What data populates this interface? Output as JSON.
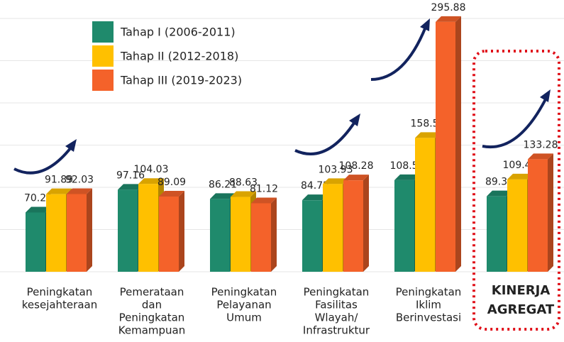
{
  "chart_data": {
    "type": "bar3d",
    "categories": [
      [
        "Peningkatan",
        "kesejahteraan"
      ],
      [
        "Pemerataan",
        "dan",
        "Peningkatan",
        "Kemampuan"
      ],
      [
        "Peningkatan",
        "Pelayanan",
        "Umum"
      ],
      [
        "Peningkatan",
        "Fasilitas",
        "Wlayah/",
        "Infrastruktur"
      ],
      [
        "Peningkatan",
        "Iklim",
        "Berinvestasi"
      ],
      [
        "KINERJA",
        "AGREGAT"
      ]
    ],
    "series": [
      {
        "name": "Tahap I (2006-2011)",
        "color": "#1f8a6c",
        "values": [
          70.2,
          97.16,
          86.21,
          84.72,
          108.5,
          89.36
        ],
        "value_labels": [
          "70.20",
          "97.16",
          "86.21",
          "84.72",
          "108.50",
          "89.36"
        ]
      },
      {
        "name": "Tahap II (2012-2018)",
        "color": "#ffc000",
        "values": [
          91.89,
          104.03,
          88.63,
          103.93,
          158.5,
          109.4
        ],
        "value_labels": [
          "91.89",
          "104.03",
          "88.63",
          "103.93",
          "158.50",
          "109.40"
        ]
      },
      {
        "name": "Tahap III (2019-2023)",
        "color": "#f4622a",
        "values": [
          92.03,
          89.09,
          81.12,
          108.28,
          295.88,
          133.28
        ],
        "value_labels": [
          "92.03",
          "89.09",
          "81.12",
          "108.28",
          "295.88",
          "133.28"
        ]
      }
    ],
    "ylim": [
      0,
      300
    ],
    "yticks": [
      0,
      50,
      100,
      150,
      200,
      250,
      300
    ],
    "grid": true
  }
}
